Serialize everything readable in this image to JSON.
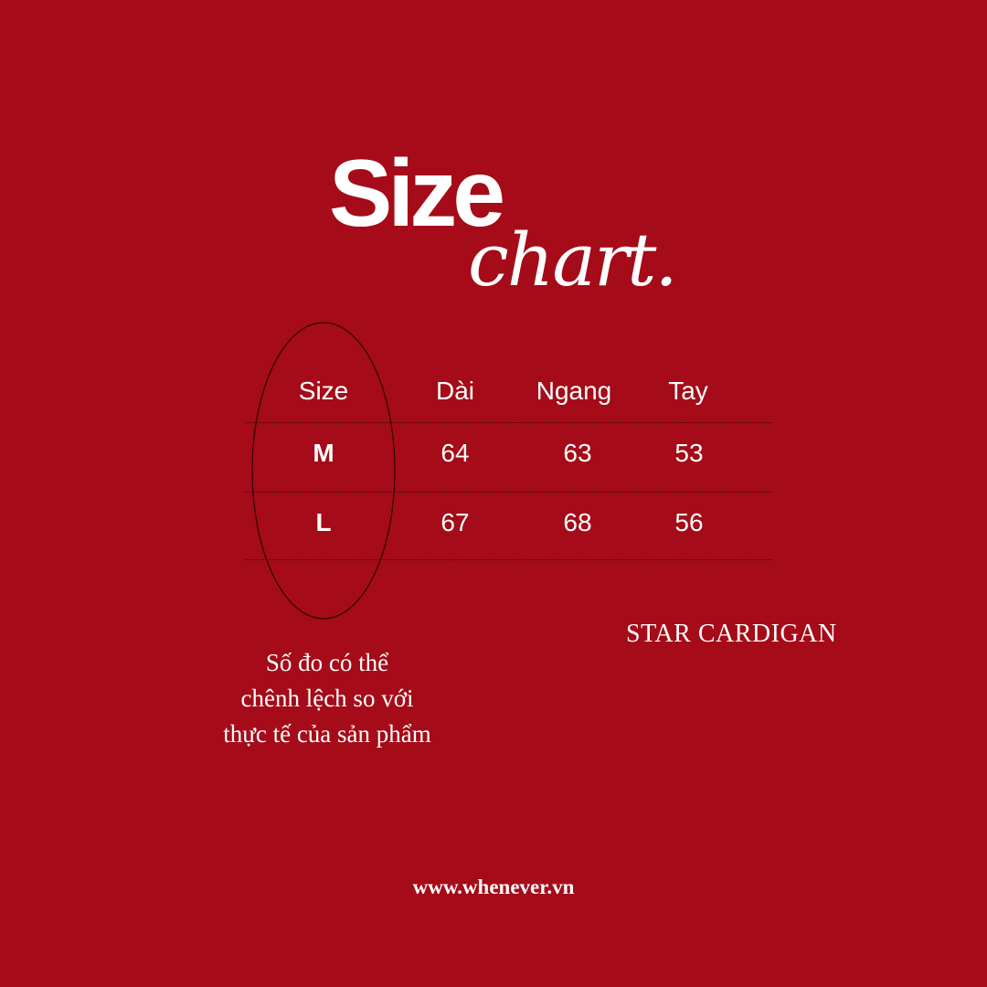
{
  "title": {
    "line1": "Size",
    "line2": "chart."
  },
  "table": {
    "headers": [
      "Size",
      "Dài",
      "Ngang",
      "Tay"
    ],
    "rows": [
      [
        "M",
        "64",
        "63",
        "53"
      ],
      [
        "L",
        "67",
        "68",
        "56"
      ]
    ]
  },
  "product_name": "STAR CARDIGAN",
  "note": [
    "Số đo có thể",
    "chênh lệch so với",
    "thực tế của sản phẩm"
  ],
  "website": "www.whenever.vn",
  "colors": {
    "background": "#a50b18",
    "text": "#ffffff",
    "lines": "#3a0a0a"
  }
}
